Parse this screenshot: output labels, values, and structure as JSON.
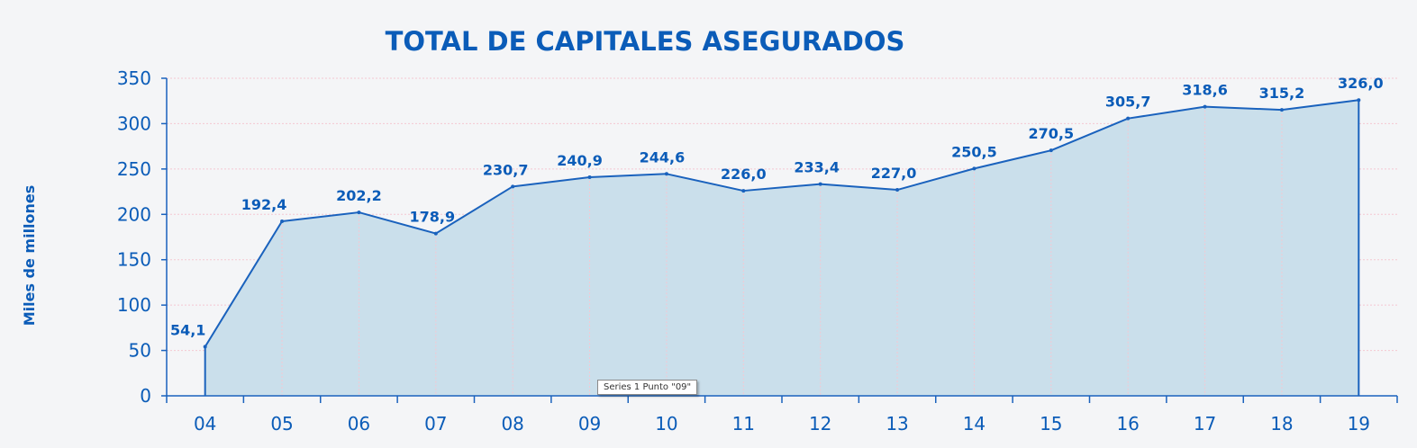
{
  "chart_data": {
    "type": "area",
    "title": "TOTAL DE CAPITALES ASEGURADOS",
    "ylabel": "Miles de millones",
    "xlabel": "",
    "categories": [
      "04",
      "05",
      "06",
      "07",
      "08",
      "09",
      "10",
      "11",
      "12",
      "13",
      "14",
      "15",
      "16",
      "17",
      "18",
      "19"
    ],
    "values": [
      54.1,
      192.4,
      202.2,
      178.9,
      230.7,
      240.9,
      244.6,
      226.0,
      233.4,
      227.0,
      250.5,
      270.5,
      305.7,
      318.6,
      315.2,
      326.0
    ],
    "value_labels": [
      "54,1",
      "192,4",
      "202,2",
      "178,9",
      "230,7",
      "240,9",
      "244,6",
      "226,0",
      "233,4",
      "227,0",
      "250,5",
      "270,5",
      "305,7",
      "318,6",
      "315,2",
      "326,0"
    ],
    "ylim": [
      0,
      350
    ],
    "yticks": [
      0,
      50,
      100,
      150,
      200,
      250,
      300,
      350
    ],
    "ytick_labels": [
      "0",
      "50",
      "100",
      "150",
      "200",
      "250",
      "300",
      "350"
    ],
    "grid": true,
    "legend": "none"
  },
  "tooltip": {
    "text": "Series 1 Punto \"09\""
  },
  "colors": {
    "accent": "#0b5cb8",
    "line": "#1a62bd",
    "fill": "#cadfeb",
    "grid": "#f4c8d2",
    "axis": "#1a62bd",
    "background": "#f4f5f7"
  }
}
